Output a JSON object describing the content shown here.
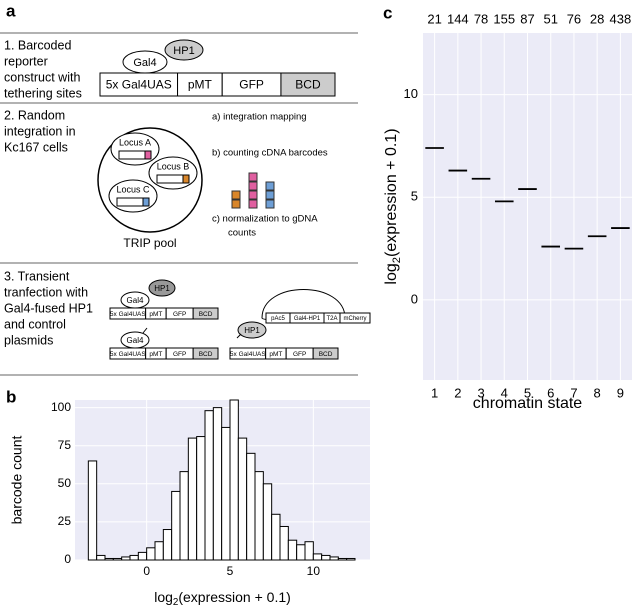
{
  "panel_labels": [
    "a",
    "b",
    "c"
  ],
  "diagram": {
    "steps": [
      {
        "lines": [
          "1. Barcoded",
          "reporter",
          "construct with",
          "tethering sites"
        ]
      },
      {
        "lines": [
          "2. Random",
          "integration in",
          "Kc167 cells"
        ]
      },
      {
        "lines": [
          "3. Transient",
          "tranfection with",
          "Gal4-fused HP1",
          "and control",
          "plasmids"
        ]
      }
    ],
    "construct": [
      "5x Gal4UAS",
      "pMT",
      "GFP",
      "BCD"
    ],
    "gal4": "Gal4",
    "hp1": "HP1",
    "loci": [
      "Locus A",
      "Locus B",
      "Locus C"
    ],
    "pool": "TRIP pool",
    "methods": [
      "a) integration mapping",
      "b) counting cDNA barcodes",
      "c) normalization to gDNA",
      "counts"
    ],
    "plasmid": [
      "pAc5",
      "Gal4-HP1",
      "T2A",
      "mCherry"
    ]
  },
  "chart_data": [
    {
      "type": "histogram",
      "x_label": {
        "main": "log",
        "sub": "2",
        "rest": "(expression + 0.1)"
      },
      "y_label": "barcode count",
      "bins": [
        -3.5,
        -3,
        -2.5,
        -2,
        -1.5,
        -1,
        -0.5,
        0,
        0.5,
        1,
        1.5,
        2,
        2.5,
        3,
        3.5,
        4,
        4.5,
        5,
        5.5,
        6,
        6.5,
        7,
        7.5,
        8,
        8.5,
        9,
        9.5,
        10,
        10.5,
        11,
        11.5,
        12,
        12.5
      ],
      "values": [
        65,
        3,
        1,
        1,
        2,
        3,
        5,
        8,
        12,
        20,
        45,
        58,
        80,
        81,
        98,
        100,
        87,
        105,
        80,
        70,
        58,
        50,
        30,
        22,
        13,
        10,
        12,
        4,
        3,
        2,
        1,
        1
      ],
      "color": "#ffffff",
      "xlim": [
        -4.3,
        13.4
      ],
      "xticks": [
        0,
        5,
        10
      ],
      "ylim": [
        0,
        105
      ],
      "yticks": [
        0,
        25,
        50,
        75,
        100
      ],
      "grid": true
    },
    {
      "type": "strip",
      "categories": [
        "1",
        "2",
        "3",
        "4",
        "5",
        "6",
        "7",
        "8",
        "9"
      ],
      "counts": [
        21,
        144,
        78,
        155,
        87,
        51,
        76,
        28,
        438
      ],
      "medians": [
        7.4,
        6.3,
        5.9,
        4.8,
        5.4,
        2.6,
        2.5,
        3.1,
        3.5
      ],
      "x_label": "chromatin state",
      "y_label": {
        "main": "log",
        "sub": "2",
        "rest": "(expression + 0.1)"
      },
      "ylim": [
        -3.9,
        13
      ],
      "yticks": [
        0,
        5,
        10
      ],
      "grid": true
    }
  ]
}
